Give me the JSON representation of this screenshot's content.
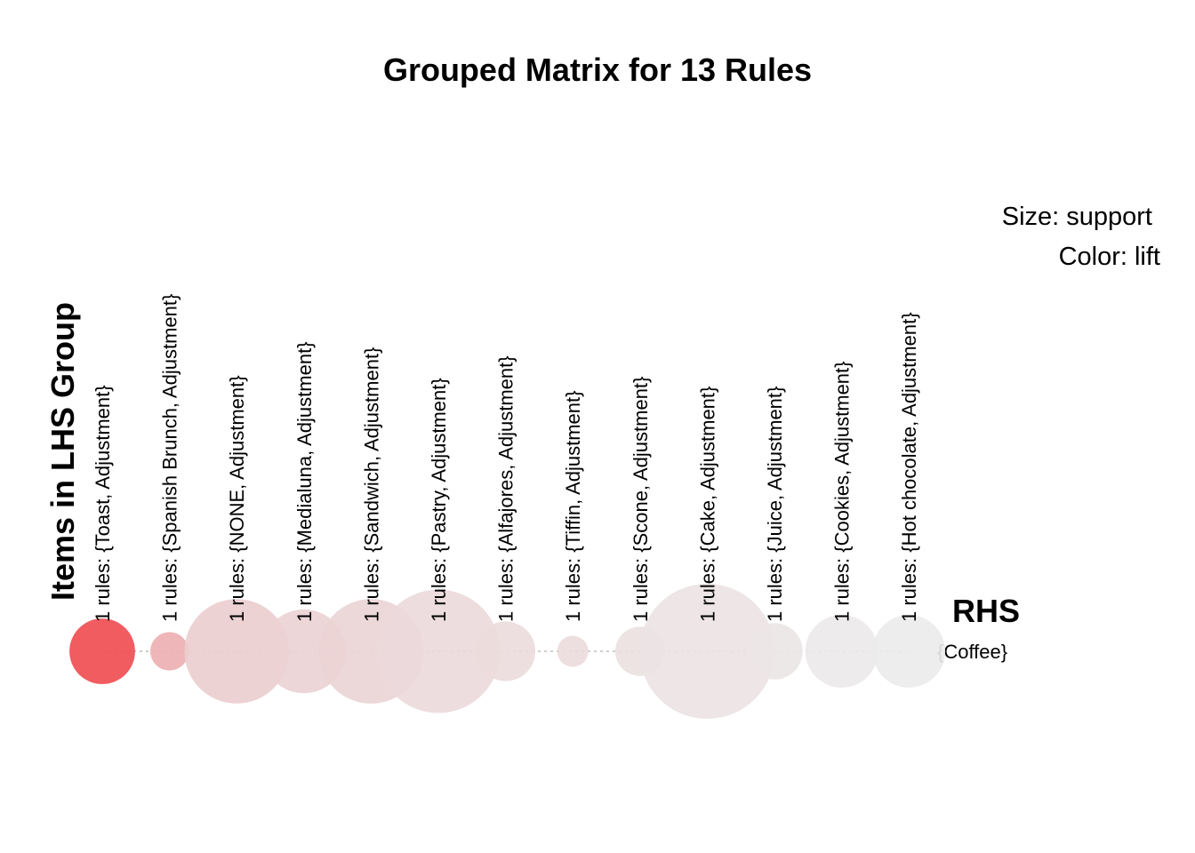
{
  "chart_data": {
    "type": "scatter",
    "title": "Grouped Matrix for 13 Rules",
    "xlabel": "Items in LHS Group",
    "ylabel": "RHS",
    "legend": [
      "Size: support",
      "Color: lift"
    ],
    "size_measure": "support",
    "color_measure": "lift",
    "rhs": [
      "{Coffee}"
    ],
    "groups": [
      {
        "label": "1 rules: {Toast, Adjustment}",
        "support": 0.0236,
        "lift": 1.47,
        "color": "#ee4a4f"
      },
      {
        "label": "1 rules: {Spanish Brunch, Adjustment}",
        "support": 0.0081,
        "lift": 1.17,
        "color": "#ecaeb0"
      },
      {
        "label": "1 rules: {NONE, Adjustment}",
        "support": 0.0599,
        "lift": 1.06,
        "color": "#ebcdce"
      },
      {
        "label": "1 rules: {Medialuna, Adjustment}",
        "support": 0.0385,
        "lift": 1.05,
        "color": "#ebd2d3"
      },
      {
        "label": "1 rules: {Sandwich, Adjustment}",
        "support": 0.06,
        "lift": 1.04,
        "color": "#ebd4d5"
      },
      {
        "label": "1 rules: {Pastry, Adjustment}",
        "support": 0.0835,
        "lift": 1.03,
        "color": "#ebd9da"
      },
      {
        "label": "1 rules: {Alfajores, Adjustment}",
        "support": 0.0194,
        "lift": 1.02,
        "color": "#ebdbdc"
      },
      {
        "label": "1 rules: {Tiffin, Adjustment}",
        "support": 0.0053,
        "lift": 1.02,
        "color": "#ebdcdd"
      },
      {
        "label": "1 rules: {Scone, Adjustment}",
        "support": 0.0134,
        "lift": 1.01,
        "color": "#ebe0e0"
      },
      {
        "label": "1 rules: {Cake, Adjustment}",
        "support": 0.1,
        "lift": 1.01,
        "color": "#ebe2e3"
      },
      {
        "label": "1 rules: {Juice, Adjustment}",
        "support": 0.0175,
        "lift": 1.0,
        "color": "#ebe6e6"
      },
      {
        "label": "1 rules: {Cookies, Adjustment}",
        "support": 0.029,
        "lift": 0.99,
        "color": "#ebe9e9"
      },
      {
        "label": "1 rules: {Hot chocolate, Adjustment}",
        "support": 0.029,
        "lift": 0.99,
        "color": "#ebebeb"
      }
    ]
  }
}
